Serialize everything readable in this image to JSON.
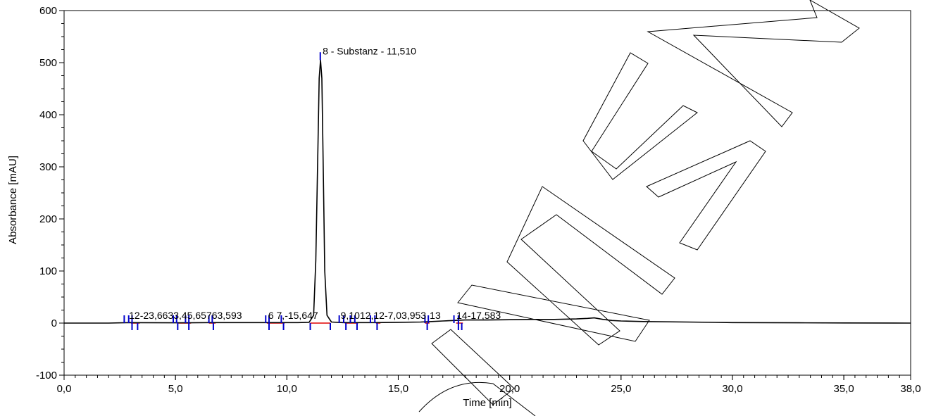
{
  "chart_data": {
    "type": "line",
    "title": "",
    "xlabel": "Time [min]",
    "ylabel": "Absorbance [mAU]",
    "xlim": [
      0,
      38
    ],
    "ylim": [
      -100,
      600
    ],
    "x_ticks": [
      {
        "value": 0,
        "label": "0,0"
      },
      {
        "value": 5,
        "label": "5,0"
      },
      {
        "value": 10,
        "label": "10,0"
      },
      {
        "value": 15,
        "label": "15,0"
      },
      {
        "value": 20,
        "label": "20,0"
      },
      {
        "value": 25,
        "label": "25,0"
      },
      {
        "value": 30,
        "label": "30,0"
      },
      {
        "value": 35,
        "label": "35,0"
      },
      {
        "value": 38,
        "label": "38,0"
      }
    ],
    "y_ticks": [
      {
        "value": -100,
        "label": "-100"
      },
      {
        "value": 0,
        "label": "0"
      },
      {
        "value": 100,
        "label": "100"
      },
      {
        "value": 200,
        "label": "200"
      },
      {
        "value": 300,
        "label": "300"
      },
      {
        "value": 400,
        "label": "400"
      },
      {
        "value": 500,
        "label": "500"
      },
      {
        "value": 600,
        "label": "600"
      }
    ],
    "series": [
      {
        "color": "#000000",
        "x": [
          0,
          2,
          2.6,
          3.0,
          3.3,
          5.0,
          5.6,
          6.6,
          7.5,
          9.0,
          9.8,
          10.5,
          11.0,
          11.2,
          11.3,
          11.4,
          11.45,
          11.51,
          11.57,
          11.62,
          11.7,
          11.8,
          12.0,
          12.5,
          13.0,
          14.0,
          15.0,
          16.0,
          16.5,
          17.0,
          17.5,
          18.0,
          19.0,
          20.0,
          21.0,
          22.0,
          23.0,
          23.5,
          23.8,
          24.2,
          24.6,
          25.0,
          26.0,
          28.0,
          30.0,
          33.0,
          35.0,
          38.0
        ],
        "y": [
          0,
          0,
          0.5,
          1,
          0.8,
          0.5,
          0.6,
          1,
          1,
          1,
          1,
          1,
          1.5,
          15,
          120,
          350,
          470,
          505,
          470,
          330,
          100,
          15,
          2,
          1,
          1,
          1,
          1.5,
          2,
          3,
          4,
          5,
          6,
          6,
          6.5,
          7,
          7,
          8,
          9,
          10,
          7,
          5,
          4,
          3,
          2,
          1,
          0.5,
          0.3,
          0
        ]
      }
    ],
    "baseline": {
      "color": "#e00000",
      "segments": [
        [
          3.0,
          3.4
        ],
        [
          5.1,
          5.7
        ],
        [
          6.5,
          6.8
        ],
        [
          9.1,
          9.9
        ],
        [
          11.05,
          11.95
        ],
        [
          12.6,
          13.2
        ],
        [
          14.0,
          14.2
        ],
        [
          16.2,
          16.4
        ],
        [
          17.6,
          17.9
        ]
      ]
    },
    "marker_color": "#0000cc",
    "peak_markers_upper": [
      2.7,
      2.9,
      3.05,
      4.9,
      5.05,
      5.45,
      5.6,
      6.5,
      6.65,
      9.05,
      9.2,
      9.75,
      11.5,
      12.35,
      12.55,
      12.85,
      13.05,
      13.75,
      13.95,
      16.2,
      16.35,
      17.5,
      17.7
    ],
    "peak_markers_lower": [
      3.05,
      3.3,
      5.1,
      5.6,
      6.7,
      9.2,
      9.85,
      11.05,
      11.95,
      12.65,
      13.15,
      14.05,
      16.3,
      17.7,
      17.85
    ],
    "peak_labels": [
      {
        "x": 2.85,
        "y": 6,
        "text": "12-23,6633,45,65763,593"
      },
      {
        "x": 9.1,
        "y": 6,
        "text": "6   7,-15,647"
      },
      {
        "x": 11.51,
        "y": 505,
        "text": "8 - Substanz - 11,510"
      },
      {
        "x": 12.35,
        "y": 6,
        "text": "9,1012,12-7,03,953"
      },
      {
        "x": 16.35,
        "y": 6,
        "text": "13"
      },
      {
        "x": 17.55,
        "y": 6,
        "text": "14-17,583"
      }
    ]
  }
}
